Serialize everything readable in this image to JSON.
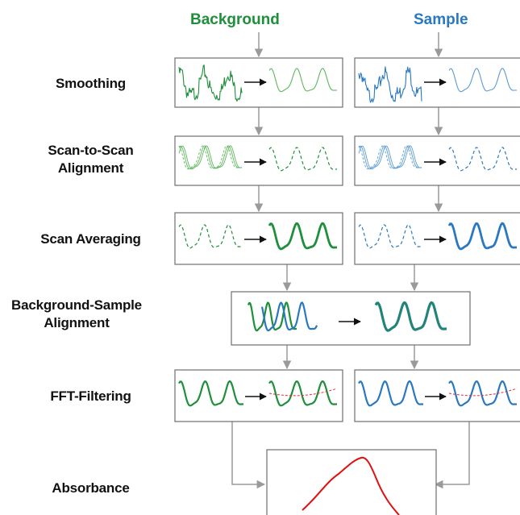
{
  "columns": {
    "background": {
      "label": "Background",
      "color": "#1e8f3a"
    },
    "sample": {
      "label": "Sample",
      "color": "#2a78c0"
    }
  },
  "steps": [
    {
      "id": "smoothing",
      "label": "Smoothing"
    },
    {
      "id": "scan-to-scan-alignment",
      "label_lines": [
        "Scan-to-Scan",
        "Alignment"
      ]
    },
    {
      "id": "scan-averaging",
      "label": "Scan Averaging"
    },
    {
      "id": "background-sample-alignment",
      "label_lines": [
        "Background-Sample",
        "Alignment"
      ]
    },
    {
      "id": "fft-filtering",
      "label": "FFT-Filtering"
    },
    {
      "id": "absorbance",
      "label": "Absorbance"
    }
  ],
  "colors": {
    "background_light": "#5cb85c",
    "sample_light": "#5b9bd5",
    "baseline": "#e03030",
    "absorbance": "#e01010",
    "arrow": "#111111",
    "connector": "#9a9a9a"
  }
}
